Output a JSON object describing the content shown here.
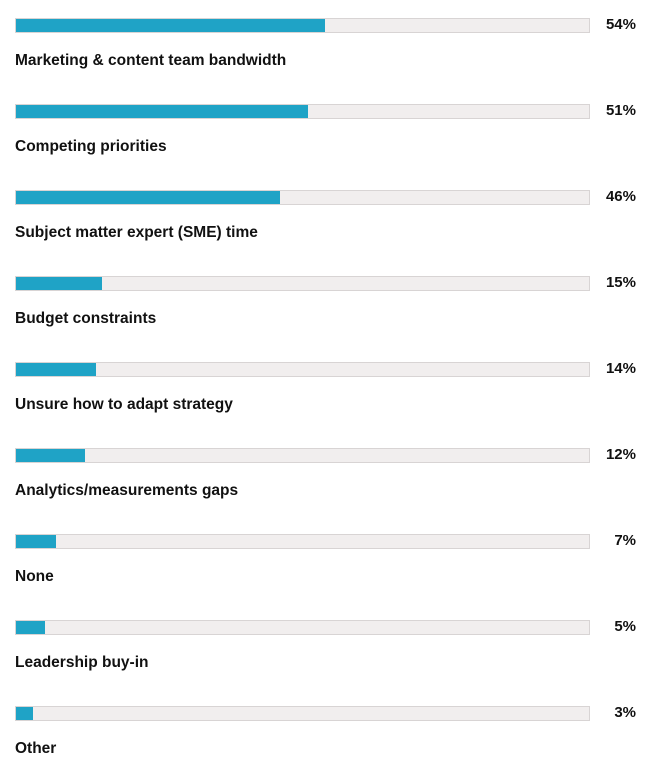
{
  "chart_data": {
    "type": "bar",
    "orientation": "horizontal",
    "title": "",
    "xlabel": "",
    "ylabel": "",
    "xlim": [
      0,
      100
    ],
    "grid": false,
    "legend": "none",
    "value_suffix": "%",
    "categories": [
      "Marketing & content team bandwidth",
      "Competing priorities",
      "Subject matter expert (SME) time",
      "Budget constraints",
      "Unsure how to adapt strategy",
      "Analytics/measurements gaps",
      "None",
      "Leadership buy-in",
      "Other"
    ],
    "values": [
      54,
      51,
      46,
      15,
      14,
      12,
      7,
      5,
      3
    ],
    "value_labels": [
      "54%",
      "51%",
      "46%",
      "15%",
      "14%",
      "12%",
      "7%",
      "5%",
      "3%"
    ],
    "colors": {
      "bar": "#1fa3c6",
      "track": "#f1eeee",
      "text": "#111111"
    }
  }
}
